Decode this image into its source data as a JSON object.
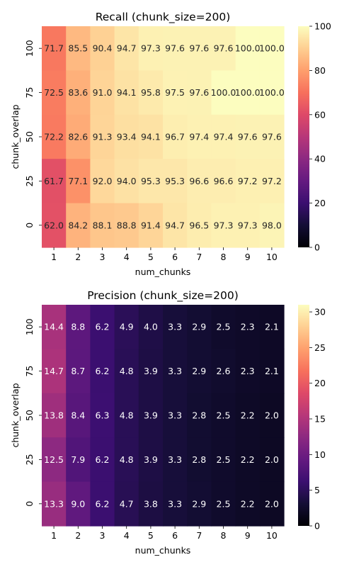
{
  "chart_data": [
    {
      "type": "heatmap",
      "title": "Recall (chunk_size=200)",
      "xlabel": "num_chunks",
      "ylabel": "chunk_overlap",
      "x": [
        "1",
        "2",
        "3",
        "4",
        "5",
        "6",
        "7",
        "8",
        "9",
        "10"
      ],
      "y": [
        "100",
        "75",
        "50",
        "25",
        "0"
      ],
      "values": [
        [
          71.7,
          85.5,
          90.4,
          94.7,
          97.3,
          97.6,
          97.6,
          97.6,
          100.0,
          100.0
        ],
        [
          72.5,
          83.6,
          91.0,
          94.1,
          95.8,
          97.5,
          97.6,
          100.0,
          100.0,
          100.0
        ],
        [
          72.2,
          82.6,
          91.3,
          93.4,
          94.1,
          96.7,
          97.4,
          97.4,
          97.6,
          97.6
        ],
        [
          61.7,
          77.1,
          92.0,
          94.0,
          95.3,
          95.3,
          96.6,
          96.6,
          97.2,
          97.2
        ],
        [
          62.0,
          84.2,
          88.1,
          88.8,
          91.4,
          94.7,
          96.5,
          97.3,
          97.3,
          98.0
        ]
      ],
      "colormap": "magma",
      "vmin": 0,
      "vmax": 100,
      "colorbar_ticks": [
        "0",
        "20",
        "40",
        "60",
        "80",
        "100"
      ]
    },
    {
      "type": "heatmap",
      "title": "Precision (chunk_size=200)",
      "xlabel": "num_chunks",
      "ylabel": "chunk_overlap",
      "x": [
        "1",
        "2",
        "3",
        "4",
        "5",
        "6",
        "7",
        "8",
        "9",
        "10"
      ],
      "y": [
        "100",
        "75",
        "50",
        "25",
        "0"
      ],
      "values": [
        [
          14.4,
          8.8,
          6.2,
          4.9,
          4.0,
          3.3,
          2.9,
          2.5,
          2.3,
          2.1
        ],
        [
          14.7,
          8.7,
          6.2,
          4.8,
          3.9,
          3.3,
          2.9,
          2.6,
          2.3,
          2.1
        ],
        [
          13.8,
          8.4,
          6.3,
          4.8,
          3.9,
          3.3,
          2.8,
          2.5,
          2.2,
          2.0
        ],
        [
          12.5,
          7.9,
          6.2,
          4.8,
          3.9,
          3.3,
          2.8,
          2.5,
          2.2,
          2.0
        ],
        [
          13.3,
          9.0,
          6.2,
          4.7,
          3.8,
          3.3,
          2.9,
          2.5,
          2.2,
          2.0
        ]
      ],
      "colormap": "magma",
      "vmin": 0,
      "vmax": 31,
      "colorbar_ticks": [
        "0",
        "5",
        "10",
        "15",
        "20",
        "25",
        "30"
      ]
    }
  ]
}
